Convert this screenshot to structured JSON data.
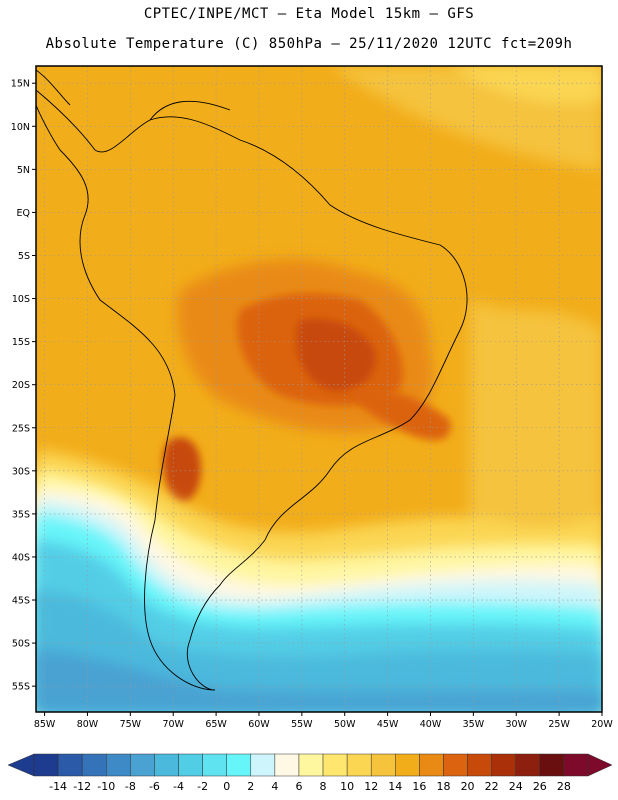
{
  "header": {
    "line1": "CPTEC/INPE/MCT –  Eta Model 15km – GFS",
    "line2": "Absolute Temperature (C) 850hPa – 25/11/2020 12UTC fct=209h"
  },
  "map": {
    "lat_labels": [
      "15N",
      "10N",
      "5N",
      "EQ",
      "5S",
      "10S",
      "15S",
      "20S",
      "25S",
      "30S",
      "35S",
      "40S",
      "45S",
      "50S",
      "55S"
    ],
    "lat_values": [
      15,
      10,
      5,
      0,
      -5,
      -10,
      -15,
      -20,
      -25,
      -30,
      -35,
      -40,
      -45,
      -50,
      -55
    ],
    "lon_labels": [
      "85W",
      "80W",
      "75W",
      "70W",
      "65W",
      "60W",
      "55W",
      "50W",
      "45W",
      "40W",
      "35W",
      "30W",
      "25W",
      "20W"
    ],
    "lon_values": [
      -85,
      -80,
      -75,
      -70,
      -65,
      -60,
      -55,
      -50,
      -45,
      -40,
      -35,
      -30,
      -25,
      -20
    ],
    "lat_range": [
      -58,
      17
    ],
    "lon_range": [
      -86,
      -20
    ],
    "grid": "dotted"
  },
  "colorbar": {
    "labels": [
      "-14",
      "-12",
      "-10",
      "-8",
      "-6",
      "-4",
      "-2",
      "0",
      "2",
      "4",
      "6",
      "8",
      "10",
      "12",
      "14",
      "16",
      "18",
      "20",
      "22",
      "24",
      "26",
      "28"
    ],
    "colors": [
      "#1d3b8f",
      "#2a5aa8",
      "#3473b8",
      "#3d8ac6",
      "#4aa2d2",
      "#4bb9dc",
      "#52cde6",
      "#5fe3f0",
      "#66f5f9",
      "#cdf5fb",
      "#fff8e4",
      "#fff6a0",
      "#ffe66e",
      "#fbd653",
      "#f5c33c",
      "#f2ad1a",
      "#e98a14",
      "#dc6410",
      "#c84a0a",
      "#a93008",
      "#8c1f0d",
      "#6a0f10",
      "#7d0a2b"
    ]
  }
}
